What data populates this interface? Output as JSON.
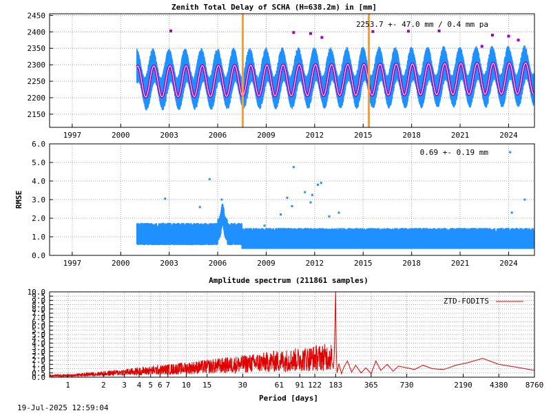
{
  "timestamp": "19-Jul-2025 12:59:04",
  "colors": {
    "ztd_points": "#1e90ff",
    "outliers": "#a000c0",
    "fit_curve": "#a000c0",
    "fit_curve_core": "#ffffff",
    "events": "#f0a040",
    "spectrum": "#e00000"
  },
  "chart_data": [
    {
      "type": "scatter",
      "title": "Zenith Total Delay of SCHA (H=638.2m) in [mm]",
      "annotation": "2253.7 +-  47.0 mm /  0.4 mm pa",
      "xlim": [
        1995.6,
        2025.6
      ],
      "ylim": [
        2110,
        2455
      ],
      "xticks": [
        "1997",
        "2000",
        "2003",
        "2006",
        "2009",
        "2012",
        "2015",
        "2018",
        "2021",
        "2024"
      ],
      "yticks": [
        "2150",
        "2200",
        "2250",
        "2300",
        "2350",
        "2400",
        "2450"
      ],
      "grid": true,
      "data_start": 2001.0,
      "data_end": 2025.55,
      "mean": 2253.7,
      "seasonal_amplitude": 47.0,
      "trend_mm_per_year": 0.4,
      "events": [
        2007.55,
        2015.35
      ],
      "outliers": [
        {
          "x": 2003.1,
          "y": 2403
        },
        {
          "x": 2010.7,
          "y": 2398
        },
        {
          "x": 2011.75,
          "y": 2395
        },
        {
          "x": 2012.45,
          "y": 2383
        },
        {
          "x": 2015.6,
          "y": 2401
        },
        {
          "x": 2017.8,
          "y": 2402
        },
        {
          "x": 2019.7,
          "y": 2403
        },
        {
          "x": 2022.35,
          "y": 2356
        },
        {
          "x": 2023.0,
          "y": 2390
        },
        {
          "x": 2024.0,
          "y": 2387
        },
        {
          "x": 2024.6,
          "y": 2375
        }
      ]
    },
    {
      "type": "scatter",
      "ylabel": "RMSE",
      "annotation": "0.69 +-  0.19 mm",
      "xlim": [
        1995.6,
        2025.6
      ],
      "ylim": [
        0,
        6.0
      ],
      "xticks": [
        "1997",
        "2000",
        "2003",
        "2006",
        "2009",
        "2012",
        "2015",
        "2018",
        "2021",
        "2024"
      ],
      "yticks": [
        "0.0",
        "1.0",
        "2.0",
        "3.0",
        "4.0",
        "5.0",
        "6.0"
      ],
      "grid": true,
      "data_start": 2001.0,
      "data_end": 2025.55,
      "mean": 0.69,
      "std": 0.19,
      "outliers": [
        {
          "x": 2002.75,
          "y": 3.05
        },
        {
          "x": 2005.5,
          "y": 4.1
        },
        {
          "x": 2004.9,
          "y": 2.6
        },
        {
          "x": 2006.25,
          "y": 3.0
        },
        {
          "x": 2010.3,
          "y": 3.1
        },
        {
          "x": 2010.7,
          "y": 4.75
        },
        {
          "x": 2010.6,
          "y": 2.65
        },
        {
          "x": 2011.4,
          "y": 3.4
        },
        {
          "x": 2011.85,
          "y": 3.25
        },
        {
          "x": 2011.75,
          "y": 2.85
        },
        {
          "x": 2012.2,
          "y": 3.8
        },
        {
          "x": 2012.4,
          "y": 3.9
        },
        {
          "x": 2013.5,
          "y": 2.3
        },
        {
          "x": 2009.9,
          "y": 2.2
        },
        {
          "x": 2008.9,
          "y": 1.6
        },
        {
          "x": 2012.9,
          "y": 2.1
        },
        {
          "x": 2024.1,
          "y": 5.55
        },
        {
          "x": 2025.0,
          "y": 3.0
        },
        {
          "x": 2024.2,
          "y": 2.3
        }
      ]
    },
    {
      "type": "line",
      "title": "Amplitude spectrum (211861 samples)",
      "xlabel": "Period [days]",
      "series": [
        {
          "name": "ZTD-FODITS"
        }
      ],
      "xscale": "log",
      "xlim": [
        0.7,
        8760
      ],
      "ylim": [
        0,
        10.0
      ],
      "xticks": [
        "1",
        "2",
        "3",
        "4",
        "5",
        "6",
        "7",
        "10",
        "15",
        "30",
        "61",
        "91",
        "122",
        "183",
        "365",
        "730",
        "2190",
        "4380",
        "8760"
      ],
      "yticks": [
        "0.0",
        "0.5",
        "1.0",
        "1.5",
        "2.0",
        "2.5",
        "3.0",
        "3.5",
        "4.0",
        "4.5",
        "5.0",
        "5.5",
        "6.0",
        "6.5",
        "7.0",
        "7.5",
        "8.0",
        "8.5",
        "9.0",
        "9.5",
        "10.0"
      ],
      "grid": true,
      "peaks": [
        {
          "x": 183,
          "y": 10.0
        },
        {
          "x": 365,
          "y": 1.9
        },
        {
          "x": 730,
          "y": 1.3
        },
        {
          "x": 1500,
          "y": 0.9
        },
        {
          "x": 3200,
          "y": 2.2
        },
        {
          "x": 8760,
          "y": 0.8
        }
      ]
    }
  ]
}
